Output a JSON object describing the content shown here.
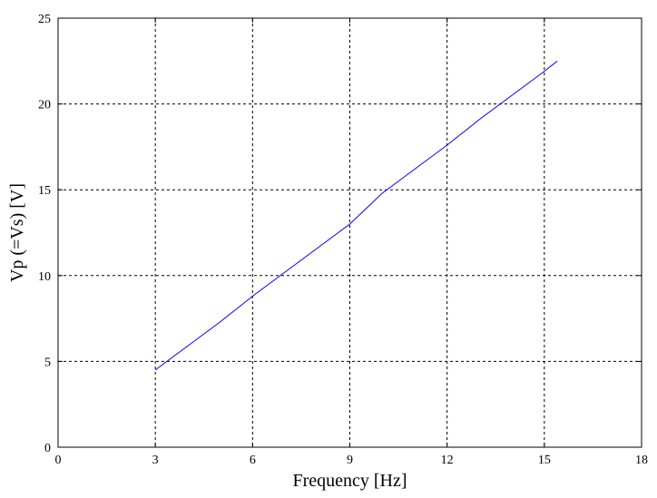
{
  "chart_data": {
    "type": "line",
    "title": "",
    "xlabel": "Frequency [Hz]",
    "ylabel": "Vp (=Vs) [V]",
    "xlim": [
      0,
      18
    ],
    "ylim": [
      0,
      25
    ],
    "xticks": [
      0,
      3,
      6,
      9,
      12,
      15,
      18
    ],
    "yticks": [
      0,
      5,
      10,
      15,
      20,
      25
    ],
    "grid": true,
    "series": [
      {
        "color": "#0000ff",
        "x": [
          3,
          4,
          5,
          6,
          7,
          8,
          9,
          10,
          11,
          12,
          13,
          14,
          15,
          15.4
        ],
        "y": [
          4.5,
          5.9,
          7.3,
          8.8,
          10.2,
          11.6,
          13.0,
          14.8,
          16.2,
          17.6,
          19.1,
          20.5,
          21.9,
          22.5
        ]
      }
    ]
  }
}
